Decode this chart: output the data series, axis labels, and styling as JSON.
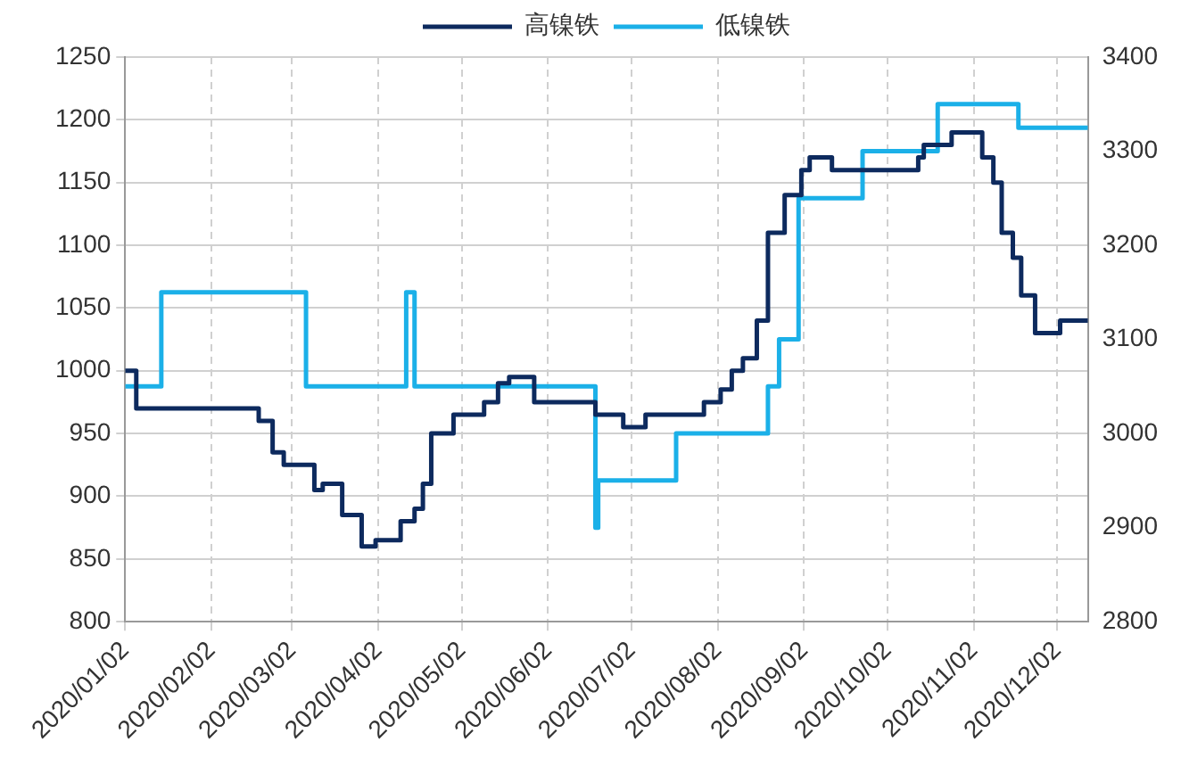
{
  "chart_data": {
    "type": "step",
    "legend": "top",
    "grid": true,
    "line_style": "solid",
    "marker": "none",
    "xlim": [
      "2020-01-02",
      "2020-12-13"
    ],
    "xticks": [
      {
        "value": "2020-01-02",
        "label": "2020/01/02"
      },
      {
        "value": "2020-02-02",
        "label": "2020/02/02"
      },
      {
        "value": "2020-03-02",
        "label": "2020/03/02"
      },
      {
        "value": "2020-04-02",
        "label": "2020/04/02"
      },
      {
        "value": "2020-05-02",
        "label": "2020/05/02"
      },
      {
        "value": "2020-06-02",
        "label": "2020/06/02"
      },
      {
        "value": "2020-07-02",
        "label": "2020/07/02"
      },
      {
        "value": "2020-08-02",
        "label": "2020/08/02"
      },
      {
        "value": "2020-09-02",
        "label": "2020/09/02"
      },
      {
        "value": "2020-10-02",
        "label": "2020/10/02"
      },
      {
        "value": "2020-11-02",
        "label": "2020/11/02"
      },
      {
        "value": "2020-12-02",
        "label": "2020/12/02"
      }
    ],
    "ylim": [
      800,
      1250
    ],
    "yticks": [
      800,
      850,
      900,
      950,
      1000,
      1050,
      1100,
      1150,
      1200,
      1250
    ],
    "y2lim": [
      2800,
      3400
    ],
    "y2ticks": [
      2800,
      2900,
      3000,
      3100,
      3200,
      3300,
      3400
    ],
    "series": [
      {
        "name": "高镍铁",
        "color": "#0d2a5e",
        "axis": "y",
        "x": [
          "2020-01-02",
          "2020-01-06",
          "2020-02-19",
          "2020-02-24",
          "2020-02-28",
          "2020-03-10",
          "2020-03-13",
          "2020-03-20",
          "2020-03-27",
          "2020-04-01",
          "2020-04-10",
          "2020-04-15",
          "2020-04-18",
          "2020-04-21",
          "2020-04-29",
          "2020-05-10",
          "2020-05-15",
          "2020-05-19",
          "2020-05-28",
          "2020-06-19",
          "2020-06-29",
          "2020-07-07",
          "2020-07-28",
          "2020-08-03",
          "2020-08-07",
          "2020-08-11",
          "2020-08-16",
          "2020-08-20",
          "2020-08-26",
          "2020-09-01",
          "2020-09-04",
          "2020-09-12",
          "2020-10-13",
          "2020-10-15",
          "2020-10-25",
          "2020-11-05",
          "2020-11-09",
          "2020-11-12",
          "2020-11-16",
          "2020-11-19",
          "2020-11-24",
          "2020-12-03",
          "2020-12-13"
        ],
        "values": [
          1000,
          970,
          960,
          935,
          925,
          905,
          910,
          885,
          860,
          865,
          880,
          890,
          910,
          950,
          965,
          975,
          990,
          995,
          975,
          965,
          955,
          965,
          975,
          985,
          1000,
          1010,
          1040,
          1110,
          1140,
          1160,
          1170,
          1160,
          1170,
          1180,
          1190,
          1170,
          1150,
          1110,
          1090,
          1060,
          1030,
          1040,
          1040
        ]
      },
      {
        "name": "低镍铁",
        "color": "#1bb0e8",
        "axis": "y2",
        "x": [
          "2020-01-02",
          "2020-01-15",
          "2020-03-07",
          "2020-04-12",
          "2020-04-15",
          "2020-06-19",
          "2020-06-20",
          "2020-07-18",
          "2020-08-20",
          "2020-08-24",
          "2020-08-31",
          "2020-09-23",
          "2020-10-20",
          "2020-11-18",
          "2020-12-13"
        ],
        "values": [
          3050,
          3150,
          3050,
          3150,
          3050,
          2900,
          2950,
          3000,
          3050,
          3100,
          3250,
          3300,
          3350,
          3325,
          3325
        ]
      }
    ]
  }
}
